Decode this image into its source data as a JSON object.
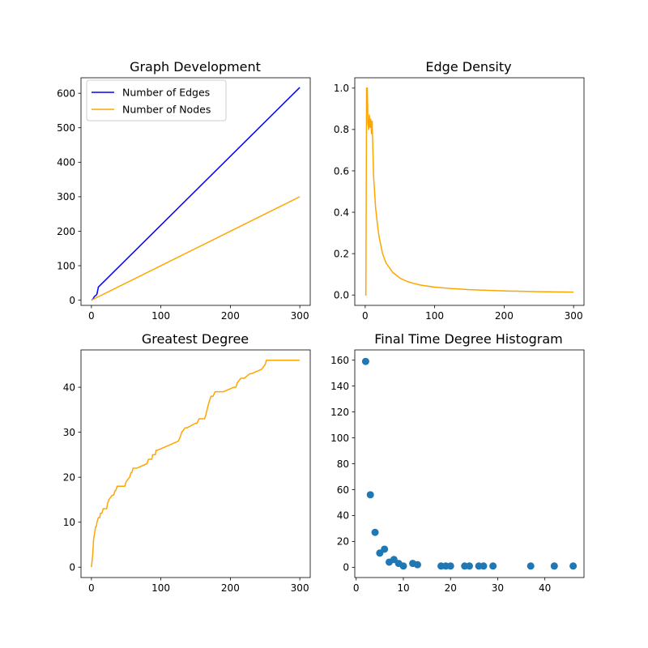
{
  "colors": {
    "blue": "#0000ff",
    "orange": "#ffa500",
    "scatter": "#1f77b4",
    "axis": "#000000"
  },
  "chart_data": [
    {
      "id": "graph-development",
      "type": "line",
      "title": "Graph Development",
      "xlim": [
        -15,
        315
      ],
      "ylim": [
        -15,
        645
      ],
      "xticks": [
        0,
        100,
        200,
        300
      ],
      "yticks": [
        0,
        100,
        200,
        300,
        400,
        500,
        600
      ],
      "legend_position": "top-left",
      "series": [
        {
          "name": "Number of Edges",
          "color": "blue",
          "x": [
            0,
            1,
            2,
            3,
            4,
            5,
            6,
            7,
            8,
            9,
            10,
            300
          ],
          "y": [
            0,
            1,
            3,
            6,
            10,
            12,
            13,
            15,
            18,
            28,
            38,
            617
          ]
        },
        {
          "name": "Number of Nodes",
          "color": "orange",
          "x": [
            0,
            300
          ],
          "y": [
            0,
            300
          ]
        }
      ]
    },
    {
      "id": "edge-density",
      "type": "line",
      "title": "Edge Density",
      "xlim": [
        -15,
        315
      ],
      "ylim": [
        -0.05,
        1.05
      ],
      "xticks": [
        0,
        100,
        200,
        300
      ],
      "yticks": [
        0.0,
        0.2,
        0.4,
        0.6,
        0.8,
        1.0
      ],
      "ytick_labels": [
        "0.0",
        "0.2",
        "0.4",
        "0.6",
        "0.8",
        "1.0"
      ],
      "series": [
        {
          "name": "",
          "color": "orange",
          "x": [
            0,
            1,
            2,
            3,
            4,
            5,
            6,
            7,
            8,
            9,
            10,
            12,
            15,
            18,
            20,
            25,
            30,
            40,
            50,
            60,
            70,
            80,
            100,
            125,
            150,
            175,
            200,
            250,
            300
          ],
          "y": [
            0,
            0,
            1.0,
            1.0,
            0.83,
            0.8,
            0.87,
            0.81,
            0.85,
            0.78,
            0.84,
            0.58,
            0.42,
            0.33,
            0.28,
            0.2,
            0.155,
            0.108,
            0.082,
            0.066,
            0.056,
            0.048,
            0.038,
            0.031,
            0.026,
            0.023,
            0.02,
            0.016,
            0.014
          ]
        }
      ]
    },
    {
      "id": "greatest-degree",
      "type": "line",
      "title": "Greatest Degree",
      "xlim": [
        -15,
        315
      ],
      "ylim": [
        -2.3,
        48.3
      ],
      "xticks": [
        0,
        100,
        200,
        300
      ],
      "yticks": [
        0,
        10,
        20,
        30,
        40
      ],
      "series": [
        {
          "name": "",
          "color": "orange",
          "x": [
            0,
            2,
            3,
            4,
            6,
            7,
            8,
            10,
            12,
            13,
            15,
            17,
            18,
            20,
            22,
            23,
            25,
            30,
            32,
            34,
            35,
            37,
            38,
            40,
            42,
            45,
            48,
            50,
            55,
            57,
            58,
            60,
            62,
            63,
            65,
            80,
            82,
            85,
            87,
            88,
            90,
            92,
            93,
            95,
            110,
            125,
            128,
            130,
            135,
            137,
            138,
            150,
            152,
            155,
            158,
            160,
            163,
            165,
            168,
            170,
            172,
            175,
            178,
            185,
            190,
            205,
            208,
            210,
            215,
            218,
            220,
            228,
            230,
            245,
            250,
            252,
            255,
            300
          ],
          "y": [
            0,
            3,
            6,
            7,
            9,
            9,
            10,
            11,
            11,
            12,
            12,
            13,
            13,
            13,
            13,
            14,
            15,
            16,
            16,
            17,
            17,
            18,
            18,
            18,
            18,
            18,
            18,
            19,
            20,
            21,
            21,
            22,
            22,
            22,
            22,
            23,
            24,
            24,
            24,
            25,
            25,
            25,
            26,
            26,
            27,
            28,
            29,
            30,
            31,
            31,
            31,
            32,
            32,
            33,
            33,
            33,
            33,
            34,
            36,
            37,
            38,
            38,
            39,
            39,
            39,
            40,
            40,
            41,
            42,
            42,
            42,
            43,
            43,
            44,
            45,
            46,
            46,
            46
          ]
        }
      ]
    },
    {
      "id": "final-time-degree-histogram",
      "type": "scatter",
      "title": "Final Time Degree Histogram",
      "xlim": [
        -0.3,
        48.3
      ],
      "ylim": [
        -7.9,
        167.9
      ],
      "xticks": [
        0,
        10,
        20,
        30,
        40
      ],
      "yticks": [
        0,
        20,
        40,
        60,
        80,
        100,
        120,
        140,
        160
      ],
      "series": [
        {
          "name": "",
          "color": "scatter",
          "x": [
            2,
            3,
            4,
            5,
            6,
            7,
            8,
            9,
            10,
            12,
            13,
            18,
            19,
            20,
            23,
            24,
            26,
            27,
            29,
            37,
            42,
            46
          ],
          "y": [
            159,
            56,
            27,
            11,
            14,
            4,
            6,
            3,
            1,
            3,
            2,
            1,
            1,
            1,
            1,
            1,
            1,
            1,
            1,
            1,
            1,
            1
          ]
        }
      ]
    }
  ]
}
